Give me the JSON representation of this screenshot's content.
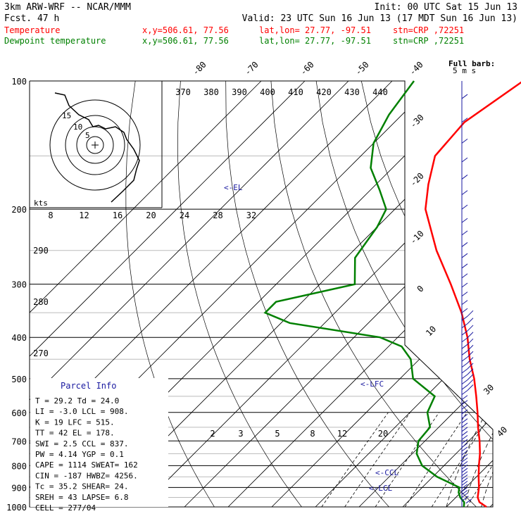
{
  "header": {
    "model": "3km ARW-WRF -- NCAR/MMM",
    "init": "Init: 00 UTC Sat 15 Jun 13",
    "fcst": "Fcst.   47 h",
    "valid": "Valid: 23 UTC Sun 16 Jun 13 (17 MDT Sun 16 Jun 13)",
    "temp_label": "Temperature",
    "dew_label": "Dewpoint temperature",
    "xy": "x,y=506.61, 77.56",
    "latlon": "lat,lon= 27.77, -97.51",
    "stn": "stn=CRP ,72251"
  },
  "barb_label": {
    "line1": "Full barb:",
    "line2": "5 m s"
  },
  "annotations": {
    "el": "<-EL",
    "lfc": "<-LFC",
    "ccl": "<-CCL",
    "lcl": "<-LCL",
    "kts": "kts"
  },
  "parcel_info": {
    "title": "Parcel Info",
    "rows": [
      "T   =   29.2  Td =  24.0",
      "LI  =   -3.0  LCL =  908.",
      "K   =     19  LFC =  515.",
      "TT  =     42  EL  =  178.",
      "SWI =    2.5  CCL =  837.",
      "PW  =   4.14  YGP =   0.1",
      "CAPE =  1114  SWEAT=  162",
      "CIN  =  -187  HWBZ= 4256.",
      "Tc   =  35.2  SHEAR=  24.",
      "SREH =    43  LAPSE=  6.8",
      "CELL = 277/04"
    ]
  },
  "chart_data": {
    "type": "line",
    "title": "Skew-T log-P sounding",
    "pressure_ticks": [
      "100",
      "200",
      "300",
      "400",
      "500",
      "600",
      "700",
      "800",
      "900",
      "1000"
    ],
    "isotherm_labels": [
      "-80",
      "-70",
      "-60",
      "-50",
      "-40",
      "-30",
      "-20",
      "-10",
      "0",
      "10",
      "30",
      "40"
    ],
    "theta_e_labels": [
      "370",
      "380",
      "390",
      "400",
      "410",
      "420",
      "430",
      "440"
    ],
    "mixing_ratio_labels": [
      "2",
      "3",
      "5",
      "8",
      "12",
      "20"
    ],
    "hodograph_speed_labels": [
      "8",
      "12",
      "16",
      "20",
      "24",
      "28",
      "32"
    ],
    "hodograph_dir_labels": [
      "290",
      "280",
      "270"
    ],
    "hodograph_ring_labels": [
      "5",
      "10",
      "15"
    ],
    "series": [
      {
        "name": "Temperature",
        "color": "#ff0000",
        "values": [
          [
            1000,
            29.2
          ],
          [
            975,
            26.5
          ],
          [
            950,
            25.0
          ],
          [
            900,
            23.0
          ],
          [
            850,
            20.5
          ],
          [
            800,
            18.0
          ],
          [
            750,
            15.5
          ],
          [
            700,
            12.5
          ],
          [
            650,
            9.0
          ],
          [
            600,
            5.5
          ],
          [
            550,
            1.5
          ],
          [
            500,
            -3.0
          ],
          [
            450,
            -8.5
          ],
          [
            400,
            -14.0
          ],
          [
            350,
            -21.0
          ],
          [
            300,
            -30.0
          ],
          [
            250,
            -41.0
          ],
          [
            200,
            -53.0
          ],
          [
            175,
            -58.0
          ],
          [
            150,
            -63.0
          ],
          [
            125,
            -64.0
          ],
          [
            100,
            -60.0
          ]
        ]
      },
      {
        "name": "Dewpoint temperature",
        "color": "#008000",
        "values": [
          [
            1000,
            24.0
          ],
          [
            975,
            23.0
          ],
          [
            950,
            21.0
          ],
          [
            925,
            19.5
          ],
          [
            900,
            18.5
          ],
          [
            850,
            11.0
          ],
          [
            800,
            5.0
          ],
          [
            750,
            1.0
          ],
          [
            700,
            -1.5
          ],
          [
            650,
            -2.0
          ],
          [
            600,
            -6.0
          ],
          [
            550,
            -8.0
          ],
          [
            500,
            -17.0
          ],
          [
            450,
            -22.0
          ],
          [
            420,
            -27.0
          ],
          [
            400,
            -34.0
          ],
          [
            370,
            -58.0
          ],
          [
            350,
            -66.0
          ],
          [
            330,
            -66.0
          ],
          [
            300,
            -52.0
          ],
          [
            260,
            -58.0
          ],
          [
            220,
            -60.0
          ],
          [
            200,
            -62.0
          ],
          [
            180,
            -68.0
          ],
          [
            160,
            -75.0
          ],
          [
            140,
            -80.0
          ],
          [
            120,
            -83.0
          ],
          [
            100,
            -85.0
          ]
        ]
      }
    ]
  }
}
